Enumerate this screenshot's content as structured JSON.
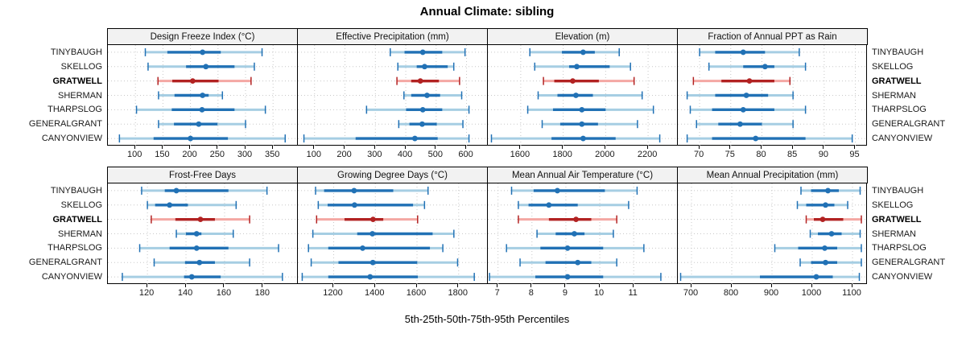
{
  "chart_data": {
    "type": "interval",
    "title": "Annual Climate: sibling",
    "xlabel": "5th-25th-50th-75th-95th Percentiles",
    "percentiles": [
      "5th",
      "25th",
      "50th",
      "75th",
      "95th"
    ],
    "sites": [
      "TINYBAUGH",
      "SKELLOG",
      "GRATWELL",
      "SHERMAN",
      "THARPSLOG",
      "GENERALGRANT",
      "CANYONVIEW"
    ],
    "highlight_site": "GRATWELL",
    "site_labels_position": "both-sides",
    "colors": {
      "blue_dark": "#2171b5",
      "blue_light": "#a6cee3",
      "red_dark": "#b22222",
      "red_light": "#f4a7a3",
      "grid": "#c8c8c8",
      "panel_border": "#000000",
      "header_bg": "#f2f2f2"
    },
    "layout": {
      "rows": 2,
      "cols": 4,
      "grid": "dotted-vertical-and-row-guides",
      "legend": "none"
    },
    "panels": [
      {
        "title": "Design Freeze Index (°C)",
        "ticks": [
          100,
          150,
          200,
          250,
          300,
          350
        ],
        "domain": [
          50,
          395
        ],
        "values": {
          "TINYBAUGH": [
            118,
            158,
            222,
            255,
            330
          ],
          "SKELLOG": [
            123,
            192,
            228,
            280,
            316
          ],
          "GRATWELL": [
            141,
            167,
            204,
            251,
            310
          ],
          "SHERMAN": [
            142,
            171,
            222,
            233,
            258
          ],
          "THARPSLOG": [
            102,
            166,
            221,
            280,
            336
          ],
          "GENERALGRANT": [
            142,
            170,
            215,
            249,
            300
          ],
          "CANYONVIEW": [
            71,
            133,
            200,
            268,
            372
          ]
        }
      },
      {
        "title": "Effective Precipitation (mm)",
        "ticks": [
          100,
          200,
          300,
          400,
          500,
          600
        ],
        "domain": [
          45,
          670
        ],
        "values": {
          "TINYBAUGH": [
            349,
            396,
            456,
            520,
            595
          ],
          "SKELLOG": [
            374,
            436,
            462,
            538,
            558
          ],
          "GRATWELL": [
            371,
            418,
            448,
            509,
            577
          ],
          "SHERMAN": [
            394,
            418,
            470,
            513,
            584
          ],
          "THARPSLOG": [
            271,
            401,
            456,
            520,
            608
          ],
          "GENERALGRANT": [
            377,
            412,
            454,
            502,
            588
          ],
          "CANYONVIEW": [
            65,
            235,
            430,
            505,
            608
          ]
        }
      },
      {
        "title": "Elevation (m)",
        "ticks": [
          1600,
          1800,
          2000,
          2200
        ],
        "domain": [
          1445,
          2340
        ],
        "values": {
          "TINYBAUGH": [
            1643,
            1794,
            1894,
            1949,
            2064
          ],
          "SKELLOG": [
            1666,
            1828,
            1864,
            2019,
            2117
          ],
          "GRATWELL": [
            1707,
            1758,
            1845,
            1968,
            2134
          ],
          "SHERMAN": [
            1682,
            1773,
            1860,
            1940,
            2172
          ],
          "THARPSLOG": [
            1633,
            1752,
            1888,
            2000,
            2225
          ],
          "GENERALGRANT": [
            1701,
            1786,
            1888,
            1964,
            2150
          ],
          "CANYONVIEW": [
            1462,
            1745,
            1894,
            2047,
            2255
          ]
        }
      },
      {
        "title": "Fraction of Annual PPT as Rain",
        "ticks": [
          70,
          75,
          80,
          85,
          90,
          95
        ],
        "domain": [
          66.5,
          97
        ],
        "values": {
          "TINYBAUGH": [
            70,
            72.5,
            77,
            80.5,
            86
          ],
          "SKELLOG": [
            71.5,
            77,
            80.5,
            82,
            87
          ],
          "GRATWELL": [
            69,
            73.5,
            78,
            82,
            84.5
          ],
          "SHERMAN": [
            68,
            72.5,
            77.5,
            81,
            85
          ],
          "THARPSLOG": [
            68.5,
            72,
            77,
            82,
            87
          ],
          "GENERALGRANT": [
            69.5,
            73,
            76.5,
            80,
            85
          ],
          "CANYONVIEW": [
            68,
            72,
            79,
            87,
            94.5
          ]
        }
      },
      {
        "title": "Frost-Free Days",
        "ticks": [
          120,
          140,
          160,
          180
        ],
        "domain": [
          99.5,
          198
        ],
        "values": {
          "TINYBAUGH": [
            117,
            129,
            135,
            162,
            182
          ],
          "SKELLOG": [
            120,
            124,
            131.5,
            141,
            166
          ],
          "GRATWELL": [
            122,
            134.5,
            147.5,
            155,
            173
          ],
          "SHERMAN": [
            135,
            140,
            145.5,
            148,
            164.5
          ],
          "THARPSLOG": [
            116,
            131.5,
            145.5,
            162,
            188
          ],
          "GENERALGRANT": [
            123.5,
            139.5,
            147,
            155,
            173
          ],
          "CANYONVIEW": [
            107,
            139,
            143,
            158,
            190
          ]
        }
      },
      {
        "title": "Growing Degree Days (°C)",
        "ticks": [
          1200,
          1400,
          1600,
          1800
        ],
        "domain": [
          1028,
          1940
        ],
        "values": {
          "TINYBAUGH": [
            1113,
            1154,
            1298,
            1486,
            1653
          ],
          "SKELLOG": [
            1126,
            1171,
            1300,
            1581,
            1636
          ],
          "GRATWELL": [
            1118,
            1252,
            1389,
            1438,
            1603
          ],
          "SHERMAN": [
            1100,
            1313,
            1386,
            1675,
            1777
          ],
          "THARPSLOG": [
            1079,
            1174,
            1339,
            1662,
            1724
          ],
          "GENERALGRANT": [
            1092,
            1223,
            1388,
            1601,
            1795
          ],
          "CANYONVIEW": [
            1049,
            1174,
            1375,
            1604,
            1875
          ]
        }
      },
      {
        "title": "Mean Annual Air Temperature (°C)",
        "ticks": [
          7,
          8,
          9,
          10,
          11
        ],
        "domain": [
          6.7,
          12.3
        ],
        "values": {
          "TINYBAUGH": [
            7.4,
            8.05,
            8.75,
            10.15,
            11.1
          ],
          "SKELLOG": [
            7.6,
            7.9,
            8.5,
            9.35,
            10.85
          ],
          "GRATWELL": [
            7.6,
            8.5,
            9.3,
            9.75,
            10.5
          ],
          "SHERMAN": [
            8.15,
            8.7,
            9.25,
            9.55,
            10.4
          ],
          "THARPSLOG": [
            7.25,
            8.25,
            9.05,
            10.1,
            11.3
          ],
          "GENERALGRANT": [
            7.65,
            8.4,
            9.35,
            9.75,
            10.5
          ],
          "CANYONVIEW": [
            6.75,
            8.1,
            9.05,
            10.1,
            11.8
          ]
        }
      },
      {
        "title": "Mean Annual Precipitation (mm)",
        "ticks": [
          700,
          800,
          900,
          1000,
          1100
        ],
        "domain": [
          666,
          1138
        ],
        "values": {
          "TINYBAUGH": [
            972,
            997,
            1039,
            1066,
            1119
          ],
          "SKELLOG": [
            963,
            985,
            1033,
            1055,
            1088
          ],
          "GRATWELL": [
            985,
            1004,
            1026,
            1077,
            1122
          ],
          "SHERMAN": [
            995,
            1014,
            1048,
            1073,
            1119
          ],
          "THARPSLOG": [
            907,
            965,
            1031,
            1062,
            1122
          ],
          "GENERALGRANT": [
            970,
            997,
            1033,
            1062,
            1122
          ],
          "CANYONVIEW": [
            673,
            870,
            1010,
            1051,
            1117
          ]
        }
      }
    ]
  }
}
